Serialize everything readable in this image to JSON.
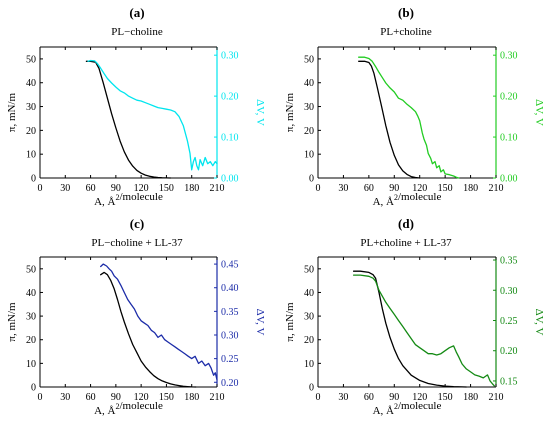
{
  "chart_data": [
    {
      "type": "line",
      "panel_label": "(a)",
      "title": "PL−choline",
      "xlabel": "A, Å²/molecule",
      "ylabel": "π, mN/m",
      "y2label": "ΔV, V",
      "xlim": [
        0,
        210
      ],
      "ylim": [
        0,
        55
      ],
      "y2lim": [
        0,
        0.32
      ],
      "xticks": [
        0,
        30,
        60,
        90,
        120,
        150,
        180,
        210
      ],
      "yticks": [
        0,
        10,
        20,
        30,
        40,
        50
      ],
      "y2ticks": [
        0.0,
        0.1,
        0.2,
        0.3
      ],
      "y2_tick_labels": [
        "0.00",
        "0.10",
        "0.20",
        "0.30"
      ],
      "right_axis_color": "#00e5ee",
      "series": [
        {
          "axis": "left",
          "color": "#000000",
          "x": [
            55,
            60,
            66,
            70,
            75,
            80,
            85,
            90,
            95,
            100,
            105,
            110,
            115,
            120,
            125,
            130,
            135,
            140,
            145,
            150,
            155
          ],
          "values": [
            49,
            49,
            48.6,
            46,
            40,
            33.5,
            27,
            21,
            15.5,
            11,
            7.5,
            5,
            3.2,
            2,
            1.2,
            0.7,
            0.4,
            0.2,
            0.1,
            0.03,
            0
          ]
        },
        {
          "axis": "right",
          "color": "#00e5ee",
          "x": [
            57,
            60,
            65,
            68,
            72,
            76,
            80,
            85,
            90,
            95,
            100,
            105,
            110,
            115,
            120,
            125,
            130,
            135,
            140,
            145,
            150,
            155,
            160,
            165,
            170,
            175,
            178,
            180,
            182,
            184,
            186,
            188,
            190,
            193,
            196,
            199,
            202,
            205,
            208,
            210
          ],
          "values": [
            0.285,
            0.287,
            0.286,
            0.28,
            0.268,
            0.255,
            0.243,
            0.232,
            0.222,
            0.213,
            0.208,
            0.2,
            0.195,
            0.19,
            0.188,
            0.184,
            0.18,
            0.176,
            0.172,
            0.17,
            0.168,
            0.166,
            0.162,
            0.15,
            0.128,
            0.09,
            0.06,
            0.02,
            0.04,
            0.05,
            0.03,
            0.02,
            0.045,
            0.03,
            0.05,
            0.035,
            0.04,
            0.03,
            0.04,
            0.035
          ]
        }
      ]
    },
    {
      "type": "line",
      "panel_label": "(b)",
      "title": "PL+choline",
      "xlabel": "A, Å²/molecule",
      "ylabel": "π, mN/m",
      "y2label": "ΔV, V",
      "xlim": [
        0,
        210
      ],
      "ylim": [
        0,
        55
      ],
      "y2lim": [
        0,
        0.32
      ],
      "xticks": [
        0,
        30,
        60,
        90,
        120,
        150,
        180,
        210
      ],
      "yticks": [
        0,
        10,
        20,
        30,
        40,
        50
      ],
      "y2ticks": [
        0.0,
        0.1,
        0.2,
        0.3
      ],
      "y2_tick_labels": [
        "0.00",
        "0.10",
        "0.20",
        "0.30"
      ],
      "right_axis_color": "#22cc22",
      "series": [
        {
          "axis": "left",
          "color": "#000000",
          "x": [
            48,
            55,
            60,
            63,
            66,
            70,
            75,
            80,
            85,
            90,
            95,
            100,
            105,
            110,
            115,
            120
          ],
          "values": [
            49,
            49,
            48.5,
            47,
            44,
            38,
            30,
            22,
            15,
            9.5,
            5.5,
            3,
            1.5,
            0.6,
            0.2,
            0
          ]
        },
        {
          "axis": "right",
          "color": "#22cc22",
          "x": [
            48,
            55,
            60,
            64,
            68,
            72,
            76,
            80,
            85,
            90,
            95,
            100,
            105,
            110,
            115,
            118,
            120,
            123,
            125,
            128,
            130,
            133,
            135,
            138,
            140,
            143,
            145,
            148,
            150,
            155,
            160,
            163,
            166
          ],
          "values": [
            0.295,
            0.295,
            0.292,
            0.285,
            0.272,
            0.258,
            0.245,
            0.232,
            0.22,
            0.21,
            0.195,
            0.19,
            0.18,
            0.172,
            0.162,
            0.15,
            0.14,
            0.11,
            0.095,
            0.08,
            0.06,
            0.048,
            0.035,
            0.04,
            0.025,
            0.03,
            0.015,
            0.02,
            0.01,
            0.008,
            0.005,
            0.002,
            0
          ]
        }
      ]
    },
    {
      "type": "line",
      "panel_label": "(c)",
      "title": "PL−choline + LL-37",
      "xlabel": "A, Å²/molecule",
      "ylabel": "π, mN/m",
      "y2label": "ΔV, V",
      "xlim": [
        0,
        210
      ],
      "ylim": [
        0,
        55
      ],
      "y2lim": [
        0.19,
        0.465
      ],
      "xticks": [
        0,
        30,
        60,
        90,
        120,
        150,
        180,
        210
      ],
      "yticks": [
        0,
        10,
        20,
        30,
        40,
        50
      ],
      "y2ticks": [
        0.2,
        0.25,
        0.3,
        0.35,
        0.4,
        0.45
      ],
      "y2_tick_labels": [
        "0.20",
        "0.25",
        "0.30",
        "0.35",
        "0.40",
        "0.45"
      ],
      "right_axis_color": "#1c2ca8",
      "series": [
        {
          "axis": "left",
          "color": "#000000",
          "x": [
            72,
            76,
            80,
            84,
            88,
            92,
            96,
            100,
            105,
            110,
            115,
            120,
            125,
            130,
            135,
            140,
            145,
            150,
            155,
            160,
            165,
            170,
            175,
            180,
            185
          ],
          "values": [
            47.5,
            48.5,
            47.5,
            45,
            41.5,
            37,
            32,
            27.5,
            22.5,
            18,
            14.5,
            11,
            8.5,
            6.5,
            4.8,
            3.5,
            2.6,
            1.9,
            1.3,
            0.9,
            0.6,
            0.3,
            0.15,
            0.05,
            0
          ]
        },
        {
          "axis": "right",
          "color": "#1c2ca8",
          "x": [
            72,
            75,
            77,
            79,
            82,
            85,
            88,
            92,
            96,
            100,
            104,
            108,
            112,
            116,
            120,
            124,
            128,
            132,
            136,
            140,
            144,
            148,
            152,
            156,
            160,
            164,
            168,
            172,
            176,
            180,
            184,
            188,
            192,
            196,
            200,
            203,
            206,
            208,
            210
          ],
          "values": [
            0.445,
            0.45,
            0.448,
            0.446,
            0.44,
            0.435,
            0.425,
            0.418,
            0.405,
            0.39,
            0.375,
            0.365,
            0.355,
            0.34,
            0.33,
            0.325,
            0.32,
            0.31,
            0.305,
            0.295,
            0.3,
            0.29,
            0.285,
            0.28,
            0.275,
            0.27,
            0.265,
            0.26,
            0.255,
            0.25,
            0.255,
            0.24,
            0.245,
            0.235,
            0.24,
            0.23,
            0.215,
            0.22,
            0.205
          ]
        }
      ]
    },
    {
      "type": "line",
      "panel_label": "(d)",
      "title": "PL+choline + LL-37",
      "xlabel": "A, Å²/molecule",
      "ylabel": "π, mN/m",
      "y2label": "ΔV, V",
      "xlim": [
        0,
        210
      ],
      "ylim": [
        0,
        55
      ],
      "y2lim": [
        0.14,
        0.355
      ],
      "xticks": [
        0,
        30,
        60,
        90,
        120,
        150,
        180,
        210
      ],
      "yticks": [
        0,
        10,
        20,
        30,
        40,
        50
      ],
      "y2ticks": [
        0.15,
        0.2,
        0.25,
        0.3,
        0.35
      ],
      "y2_tick_labels": [
        "0.15",
        "0.20",
        "0.25",
        "0.30",
        "0.35"
      ],
      "right_axis_color": "#148a14",
      "series": [
        {
          "axis": "left",
          "color": "#000000",
          "x": [
            42,
            50,
            60,
            65,
            68,
            72,
            76,
            80,
            85,
            90,
            95,
            100,
            110,
            120,
            130,
            140,
            150,
            160,
            170,
            175
          ],
          "values": [
            49,
            49,
            48.5,
            47.5,
            46,
            40,
            33,
            27,
            21,
            16,
            12,
            9,
            5,
            2.8,
            1.5,
            0.8,
            0.4,
            0.15,
            0.03,
            0
          ]
        },
        {
          "axis": "right",
          "color": "#148a14",
          "x": [
            42,
            50,
            60,
            65,
            68,
            72,
            76,
            80,
            85,
            90,
            95,
            100,
            105,
            110,
            115,
            120,
            125,
            130,
            135,
            140,
            145,
            150,
            155,
            160,
            163,
            166,
            170,
            175,
            180,
            185,
            190,
            195,
            200,
            203,
            206,
            208
          ],
          "values": [
            0.325,
            0.325,
            0.323,
            0.32,
            0.315,
            0.3,
            0.29,
            0.28,
            0.27,
            0.26,
            0.25,
            0.24,
            0.23,
            0.22,
            0.21,
            0.205,
            0.2,
            0.195,
            0.195,
            0.193,
            0.195,
            0.2,
            0.205,
            0.208,
            0.198,
            0.19,
            0.178,
            0.17,
            0.165,
            0.16,
            0.158,
            0.155,
            0.16,
            0.15,
            0.145,
            0.142
          ]
        }
      ]
    }
  ]
}
